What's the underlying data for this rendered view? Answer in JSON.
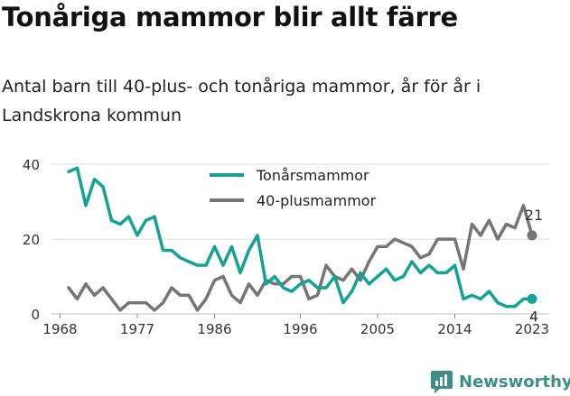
{
  "title": "Tonåriga mammor blir allt färre",
  "subtitle": "Antal barn till 40-plus- och tonåriga mammor, år för år i Landskrona kommun",
  "brand": "Newsworthy",
  "colors": {
    "teal": "#14a293",
    "gray": "#757575",
    "brand": "#3d8f86"
  },
  "chart_data": {
    "type": "line",
    "x": [
      1969,
      1970,
      1971,
      1972,
      1973,
      1974,
      1975,
      1976,
      1977,
      1978,
      1979,
      1980,
      1981,
      1982,
      1983,
      1984,
      1985,
      1986,
      1987,
      1988,
      1989,
      1990,
      1991,
      1992,
      1993,
      1994,
      1995,
      1996,
      1997,
      1998,
      1999,
      2000,
      2001,
      2002,
      2003,
      2004,
      2005,
      2006,
      2007,
      2008,
      2009,
      2010,
      2011,
      2012,
      2013,
      2014,
      2015,
      2016,
      2017,
      2018,
      2019,
      2020,
      2021,
      2022,
      2023
    ],
    "series": [
      {
        "name": "Tonårsmammor",
        "color": "#14a293",
        "values": [
          38,
          39,
          29,
          36,
          34,
          25,
          24,
          26,
          21,
          25,
          26,
          17,
          17,
          15,
          14,
          13,
          13,
          18,
          13,
          18,
          11,
          17,
          21,
          8,
          10,
          7,
          6,
          8,
          9,
          7,
          7,
          10,
          3,
          6,
          11,
          8,
          10,
          12,
          9,
          10,
          14,
          11,
          13,
          11,
          11,
          13,
          4,
          5,
          4,
          6,
          3,
          2,
          2,
          4,
          4
        ],
        "end_label": "4"
      },
      {
        "name": "40-plusmammor",
        "color": "#757575",
        "values": [
          7,
          4,
          8,
          5,
          7,
          4,
          1,
          3,
          3,
          3,
          1,
          3,
          7,
          5,
          5,
          1,
          4,
          9,
          10,
          5,
          3,
          8,
          5,
          9,
          8,
          8,
          10,
          10,
          4,
          5,
          13,
          10,
          9,
          12,
          9,
          14,
          18,
          18,
          20,
          19,
          18,
          15,
          16,
          20,
          20,
          20,
          12,
          24,
          21,
          25,
          20,
          24,
          23,
          29,
          21
        ],
        "end_label": "21"
      }
    ],
    "x_ticks": [
      1968,
      1977,
      1986,
      1996,
      2005,
      2014,
      2023
    ],
    "y_ticks": [
      0,
      20,
      40
    ],
    "xlim": [
      1967,
      2025
    ],
    "ylim": [
      0,
      41
    ],
    "grid": "horizontal",
    "legend": "top-center"
  }
}
